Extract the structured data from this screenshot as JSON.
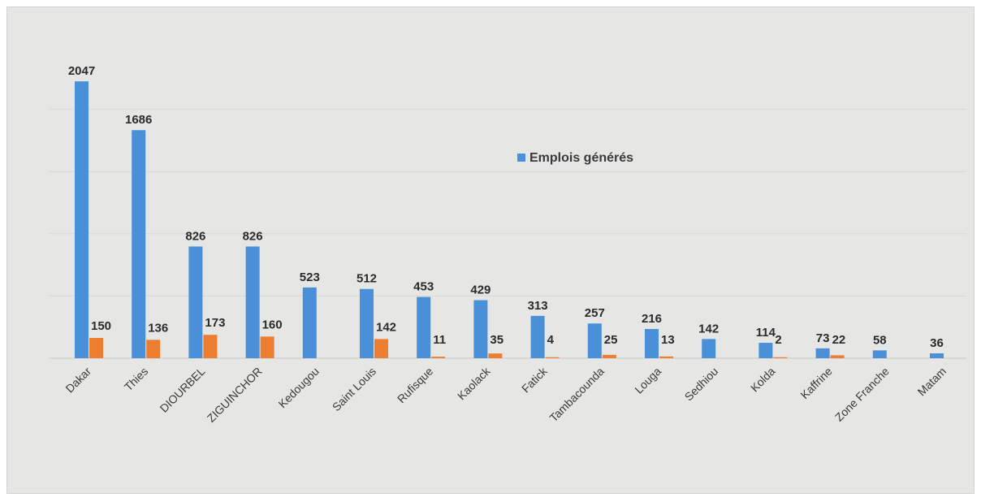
{
  "chart_data": {
    "type": "bar",
    "title": "",
    "xlabel": "",
    "ylabel": "",
    "ylim": [
      0,
      2300
    ],
    "grid": true,
    "legend_position": "upper-middle",
    "categories": [
      "Dakar",
      "Thies",
      "DIOURBEL",
      "ZIGUINCHOR",
      "Kedougou",
      "Saint Louis",
      "Rufisque",
      "Kaolack",
      "Fatick",
      "Tambacounda",
      "Louga",
      "Sedhiou",
      "Kolda",
      "Kaffrine",
      "Zone Franche",
      "Matam"
    ],
    "series": [
      {
        "name": "Emplois générés",
        "color": "#4a90d9",
        "values": [
          2047,
          1686,
          826,
          826,
          523,
          512,
          453,
          429,
          313,
          257,
          216,
          142,
          114,
          73,
          58,
          36
        ],
        "labels": [
          "2047",
          "1686",
          "826",
          "826",
          "523",
          "512",
          "453",
          "429",
          "313",
          "257",
          "216",
          "142",
          "114",
          "73",
          "58",
          "36"
        ]
      },
      {
        "name": "",
        "color": "#ed7d31",
        "values": [
          150,
          136,
          173,
          160,
          null,
          142,
          11,
          35,
          4,
          25,
          13,
          null,
          2,
          22,
          null,
          null
        ],
        "labels": [
          "150",
          "136",
          "173",
          "160",
          "",
          "142",
          "11",
          "35",
          "4",
          "25",
          "13",
          "",
          "2",
          "22",
          "",
          ""
        ]
      }
    ]
  }
}
